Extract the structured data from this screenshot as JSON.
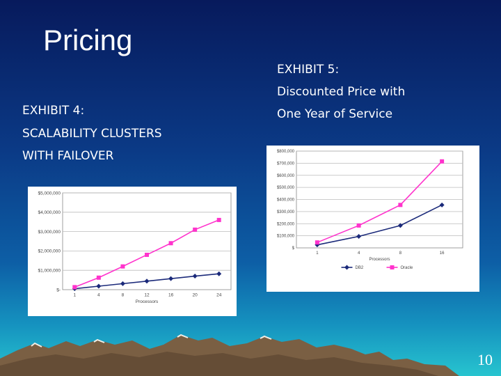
{
  "slide": {
    "title": "Pricing",
    "page_number": "10"
  },
  "exhibit4": {
    "line1": "EXHIBIT 4:",
    "line2": "SCALABILITY CLUSTERS",
    "line3": "WITH FAILOVER"
  },
  "exhibit5": {
    "line1": "EXHIBIT 5:",
    "line2": "Discounted Price with",
    "line3": "One Year of Service"
  },
  "colors": {
    "db2_series": "#1b2a7a",
    "oracle_series": "#ff33cc"
  },
  "chart_data": [
    {
      "type": "line",
      "title": "",
      "xlabel": "Processors",
      "ylabel": "",
      "categories": [
        "1",
        "4",
        "8",
        "12",
        "16",
        "20",
        "24"
      ],
      "yticks": [
        "$-",
        "$1,000,000",
        "$2,000,000",
        "$3,000,000",
        "$4,000,000",
        "$5,000,000"
      ],
      "ylim": [
        0,
        5000000
      ],
      "grid": true,
      "legend": "none",
      "series": [
        {
          "color": "#1b2a7a",
          "marker": "diamond",
          "values": [
            50000,
            180000,
            310000,
            440000,
            570000,
            700000,
            820000
          ]
        },
        {
          "color": "#ff33cc",
          "marker": "square",
          "values": [
            130000,
            620000,
            1200000,
            1800000,
            2400000,
            3100000,
            3600000
          ]
        }
      ]
    },
    {
      "type": "line",
      "title": "",
      "xlabel": "Processors",
      "ylabel": "",
      "categories": [
        "1",
        "4",
        "8",
        "16"
      ],
      "yticks": [
        "$",
        "$100,000",
        "$200,000",
        "$300,000",
        "$400,000",
        "$500,000",
        "$600,000",
        "$700,000",
        "$800,000"
      ],
      "ylim": [
        0,
        800000
      ],
      "grid": true,
      "legend": "bottom",
      "series": [
        {
          "name": "DB2",
          "color": "#1b2a7a",
          "marker": "diamond",
          "values": [
            25000,
            95000,
            185000,
            355000
          ]
        },
        {
          "name": "Oracle",
          "color": "#ff33cc",
          "marker": "square",
          "values": [
            45000,
            185000,
            355000,
            715000
          ]
        }
      ]
    }
  ]
}
